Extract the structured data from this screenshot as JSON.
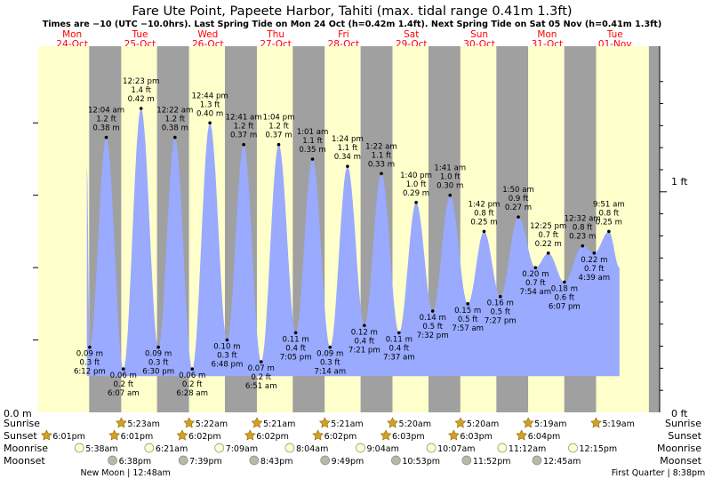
{
  "title": "Fare Ute Point, Papeete Harbor, Tahiti (max. tidal range 0.41m 1.3ft)",
  "subtitle": "Times are −10 (UTC −10.0hrs). Last Spring Tide on Mon 24 Oct (h=0.42m 1.4ft). Next Spring Tide on Sat 05 Nov (h=0.41m 1.3ft)",
  "colors": {
    "day": "#ffffcc",
    "night": "#a0a0a0",
    "tide": "#99aaff",
    "header_text": "#ff0000",
    "sun_icon": "#d4a020",
    "moon_rise": "#ffffcc",
    "moon_set": "#b8b8a8"
  },
  "days": [
    {
      "dow": "Mon",
      "date": "24-Oct"
    },
    {
      "dow": "Tue",
      "date": "25-Oct"
    },
    {
      "dow": "Wed",
      "date": "26-Oct"
    },
    {
      "dow": "Thu",
      "date": "27-Oct"
    },
    {
      "dow": "Fri",
      "date": "28-Oct"
    },
    {
      "dow": "Sat",
      "date": "29-Oct"
    },
    {
      "dow": "Sun",
      "date": "30-Oct"
    },
    {
      "dow": "Mon",
      "date": "31-Oct"
    },
    {
      "dow": "Tue",
      "date": "01-Nov"
    }
  ],
  "axis_labels": {
    "left_zero": "0.0 m",
    "right_zero": "0 ft",
    "right_one": "1 ft"
  },
  "row_labels": [
    "Sunrise",
    "Sunset",
    "Moonrise",
    "Moonset"
  ],
  "chart_data": {
    "type": "area",
    "ylabel_left": "m",
    "ylabel_right": "ft",
    "ylim_m": [
      0.0,
      0.5
    ],
    "x_unit": "hours from 24-Oct 00:00",
    "xlim": [
      0,
      208
    ],
    "tides": [
      {
        "t": 17.2,
        "m": 0.34,
        "label": null
      },
      {
        "t": 18.2,
        "m": 0.09,
        "label": [
          "0.09 m",
          "0.3 ft",
          "6:12 pm"
        ],
        "kind": "low"
      },
      {
        "t": 24.07,
        "m": 0.38,
        "label": [
          "12:04 am",
          "1.2 ft",
          "0.38 m"
        ],
        "kind": "high"
      },
      {
        "t": 30.12,
        "m": 0.06,
        "label": [
          "0.06 m",
          "0.2 ft",
          "6:07 am"
        ],
        "kind": "low"
      },
      {
        "t": 36.38,
        "m": 0.42,
        "label": [
          "12:23 pm",
          "1.4 ft",
          "0.42 m"
        ],
        "kind": "high"
      },
      {
        "t": 42.5,
        "m": 0.09,
        "label": [
          "0.09 m",
          "0.3 ft",
          "6:30 pm"
        ],
        "kind": "low"
      },
      {
        "t": 48.37,
        "m": 0.38,
        "label": [
          "12:22 am",
          "1.2 ft",
          "0.38 m"
        ],
        "kind": "high"
      },
      {
        "t": 54.47,
        "m": 0.06,
        "label": [
          "0.06 m",
          "0.2 ft",
          "6:28 am"
        ],
        "kind": "low"
      },
      {
        "t": 60.73,
        "m": 0.4,
        "label": [
          "12:44 pm",
          "1.3 ft",
          "0.40 m"
        ],
        "kind": "high"
      },
      {
        "t": 66.8,
        "m": 0.1,
        "label": [
          "0.10 m",
          "0.3 ft",
          "6:48 pm"
        ],
        "kind": "low"
      },
      {
        "t": 72.68,
        "m": 0.37,
        "label": [
          "12:41 am",
          "1.2 ft",
          "0.37 m"
        ],
        "kind": "high"
      },
      {
        "t": 78.85,
        "m": 0.07,
        "label": [
          "0.07 m",
          "0.2 ft",
          "6:51 am"
        ],
        "kind": "low"
      },
      {
        "t": 85.07,
        "m": 0.37,
        "label": [
          "1:04 pm",
          "1.2 ft",
          "0.37 m"
        ],
        "kind": "high"
      },
      {
        "t": 91.08,
        "m": 0.11,
        "label": [
          "0.11 m",
          "0.4 ft",
          "7:05 pm"
        ],
        "kind": "low"
      },
      {
        "t": 97.02,
        "m": 0.35,
        "label": [
          "1:01 am",
          "1.1 ft",
          "0.35 m"
        ],
        "kind": "high"
      },
      {
        "t": 103.23,
        "m": 0.09,
        "label": [
          "0.09 m",
          "0.3 ft",
          "7:14 am"
        ],
        "kind": "low"
      },
      {
        "t": 109.4,
        "m": 0.34,
        "label": [
          "1:24 pm",
          "1.1 ft",
          "0.34 m"
        ],
        "kind": "high"
      },
      {
        "t": 115.35,
        "m": 0.12,
        "label": [
          "0.12 m",
          "0.4 ft",
          "7:21 pm"
        ],
        "kind": "low"
      },
      {
        "t": 121.37,
        "m": 0.33,
        "label": [
          "1:22 am",
          "1.1 ft",
          "0.33 m"
        ],
        "kind": "high"
      },
      {
        "t": 127.62,
        "m": 0.11,
        "label": [
          "0.11 m",
          "0.4 ft",
          "7:37 am"
        ],
        "kind": "low"
      },
      {
        "t": 133.67,
        "m": 0.29,
        "label": [
          "1:40 pm",
          "1.0 ft",
          "0.29 m"
        ],
        "kind": "high"
      },
      {
        "t": 139.53,
        "m": 0.14,
        "label": [
          "0.14 m",
          "0.5 ft",
          "7:32 pm"
        ],
        "kind": "low"
      },
      {
        "t": 145.68,
        "m": 0.3,
        "label": [
          "1:41 am",
          "1.0 ft",
          "0.30 m"
        ],
        "kind": "high"
      },
      {
        "t": 151.95,
        "m": 0.15,
        "label": [
          "0.15 m",
          "0.5 ft",
          "7:57 am"
        ],
        "kind": "low"
      },
      {
        "t": 157.7,
        "m": 0.25,
        "label": [
          "1:42 pm",
          "0.8 ft",
          "0.25 m"
        ],
        "kind": "high"
      },
      {
        "t": 163.45,
        "m": 0.16,
        "label": [
          "0.16 m",
          "0.5 ft",
          "7:27 pm"
        ],
        "kind": "low"
      },
      {
        "t": 169.83,
        "m": 0.27,
        "label": [
          "1:50 am",
          "0.9 ft",
          "0.27 m"
        ],
        "kind": "high"
      },
      {
        "t": 175.9,
        "m": 0.2,
        "label": [
          "0.20 m",
          "0.7 ft",
          "7:54 am"
        ],
        "kind": "low"
      },
      {
        "t": 180.42,
        "m": 0.22,
        "label": [
          "12:25 pm",
          "0.7 ft",
          "0.22 m"
        ],
        "kind": "high"
      },
      {
        "t": 186.12,
        "m": 0.18,
        "label": [
          "0.18 m",
          "0.6 ft",
          "6:07 pm"
        ],
        "kind": "low"
      },
      {
        "t": 192.53,
        "m": 0.23,
        "label": [
          "12:32 am",
          "0.8 ft",
          "0.23 m"
        ],
        "kind": "high"
      },
      {
        "t": 196.65,
        "m": 0.22,
        "label": [
          "0.22 m",
          "0.7 ft",
          "4:39 am"
        ],
        "kind": "low"
      },
      {
        "t": 201.85,
        "m": 0.25,
        "label": [
          "9:51 am",
          "0.8 ft",
          "0.25 m"
        ],
        "kind": "high"
      },
      {
        "t": 205.6,
        "m": 0.2,
        "label": null
      }
    ],
    "sun": [
      {
        "day": 0,
        "set": 18.02,
        "set_label": "6:01pm"
      },
      {
        "day": 1,
        "rise": 5.38,
        "rise_label": "5:23am",
        "set": 18.02,
        "set_label": "6:01pm"
      },
      {
        "day": 2,
        "rise": 5.37,
        "rise_label": "5:22am",
        "set": 18.03,
        "set_label": "6:02pm"
      },
      {
        "day": 3,
        "rise": 5.35,
        "rise_label": "5:21am",
        "set": 18.03,
        "set_label": "6:02pm"
      },
      {
        "day": 4,
        "rise": 5.35,
        "rise_label": "5:21am",
        "set": 18.03,
        "set_label": "6:02pm"
      },
      {
        "day": 5,
        "rise": 5.33,
        "rise_label": "5:20am",
        "set": 18.05,
        "set_label": "6:03pm"
      },
      {
        "day": 6,
        "rise": 5.33,
        "rise_label": "5:20am",
        "set": 18.05,
        "set_label": "6:03pm"
      },
      {
        "day": 7,
        "rise": 5.32,
        "rise_label": "5:19am",
        "set": 18.07,
        "set_label": "6:04pm"
      },
      {
        "day": 8,
        "rise": 5.32,
        "rise_label": "5:19am"
      }
    ],
    "moonrise": [
      {
        "day": 1,
        "t": 5.63,
        "label": "5:38am"
      },
      {
        "day": 2,
        "t": 6.35,
        "label": "6:21am"
      },
      {
        "day": 3,
        "t": 7.15,
        "label": "7:09am"
      },
      {
        "day": 4,
        "t": 8.07,
        "label": "8:04am"
      },
      {
        "day": 5,
        "t": 9.07,
        "label": "9:04am"
      },
      {
        "day": 6,
        "t": 10.12,
        "label": "10:07am"
      },
      {
        "day": 7,
        "t": 11.2,
        "label": "11:12am"
      },
      {
        "day": 8,
        "t": 12.25,
        "label": "12:15pm"
      }
    ],
    "moonset": [
      {
        "day": 1,
        "t": 18.63,
        "label": "6:38pm"
      },
      {
        "day": 2,
        "t": 19.65,
        "label": "7:39pm"
      },
      {
        "day": 3,
        "t": 20.72,
        "label": "8:43pm"
      },
      {
        "day": 4,
        "t": 21.82,
        "label": "9:49pm"
      },
      {
        "day": 5,
        "t": 22.88,
        "label": "10:53pm"
      },
      {
        "day": 6,
        "t": 23.87,
        "label": "11:52pm"
      },
      {
        "day": 8,
        "t": 0.75,
        "label": "12:45am"
      }
    ],
    "phases": [
      {
        "text": "New Moon | 12:48am",
        "t": 0.8
      },
      {
        "text": "First Quarter | 8:38pm",
        "t": 188.6
      }
    ]
  }
}
